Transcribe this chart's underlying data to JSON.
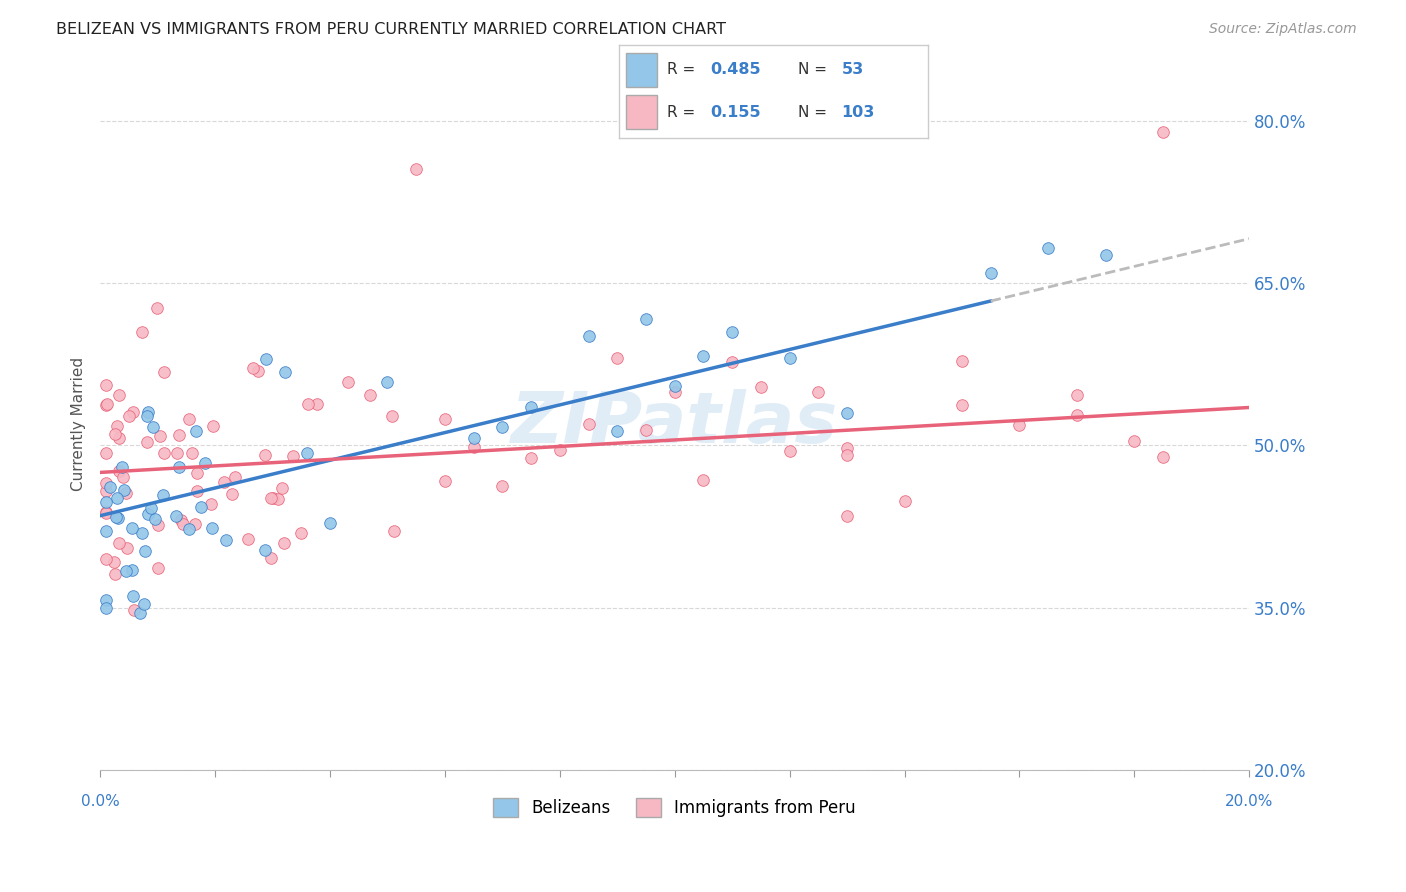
{
  "title": "BELIZEAN VS IMMIGRANTS FROM PERU CURRENTLY MARRIED CORRELATION CHART",
  "source": "Source: ZipAtlas.com",
  "ylabel": "Currently Married",
  "y_ticks": [
    0.2,
    0.35,
    0.5,
    0.65,
    0.8
  ],
  "y_tick_labels": [
    "20.0%",
    "35.0%",
    "50.0%",
    "65.0%",
    "80.0%"
  ],
  "x_lim": [
    0.0,
    0.2
  ],
  "y_lim": [
    0.2,
    0.84
  ],
  "color_blue": "#93c6e8",
  "color_pink": "#f7b8c4",
  "color_blue_line": "#3a7dc9",
  "color_pink_line": "#e8637a",
  "color_dashed": "#bbbbbb",
  "watermark": "ZIPatlas",
  "blue_intercept": 0.435,
  "blue_slope": 1.28,
  "pink_intercept": 0.475,
  "pink_slope": 0.3,
  "blue_line_solid_end": 0.155,
  "blue_line_dashed_end": 0.2
}
